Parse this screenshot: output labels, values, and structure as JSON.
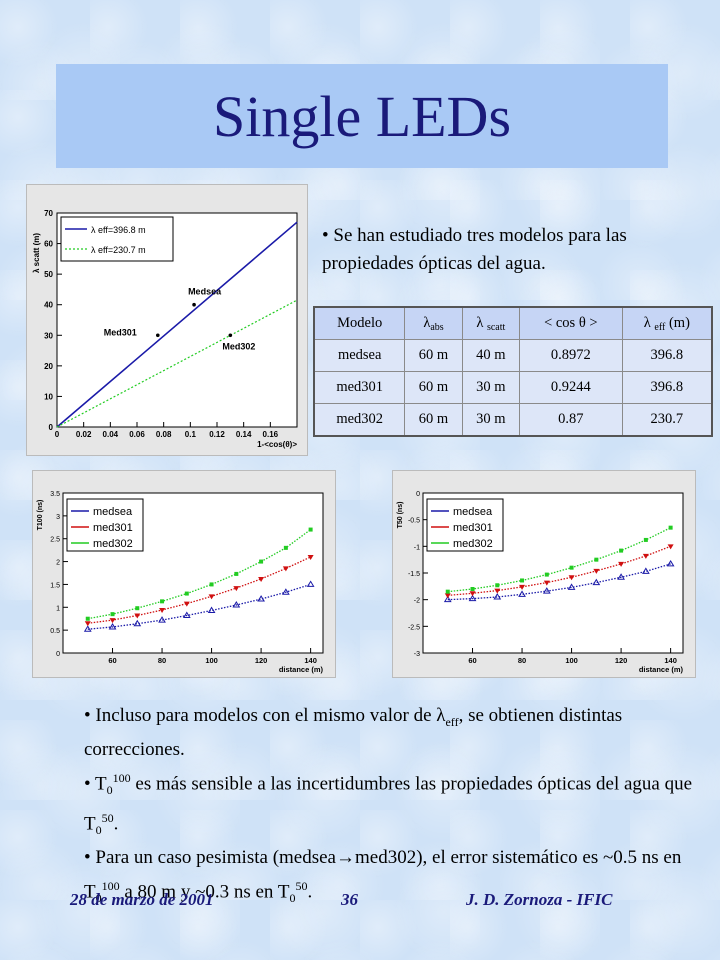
{
  "title": "Single LEDs",
  "top_bullet": "• Se han estudiado tres modelos para las propiedades ópticas del agua.",
  "table": {
    "headers": {
      "modelo": "Modelo",
      "abs_sym": "λ",
      "abs_sub": "abs",
      "scatt_sym": "λ",
      "scatt_sub": "scatt",
      "cos": "< cos θ >",
      "eff_sym": "λ",
      "eff_sub": "eff",
      "eff_unit": "(m)"
    },
    "rows": [
      {
        "modelo": "medsea",
        "abs": "60 m",
        "scatt": "40 m",
        "cos": "0.8972",
        "eff": "396.8"
      },
      {
        "modelo": "med301",
        "abs": "60 m",
        "scatt": "30 m",
        "cos": "0.9244",
        "eff": "396.8"
      },
      {
        "modelo": "med302",
        "abs": "60 m",
        "scatt": "30 m",
        "cos": "0.87",
        "eff": "230.7"
      }
    ]
  },
  "bottom": {
    "b1_pre": "• Incluso para modelos con el mismo valor de ",
    "b1_sym": "λ",
    "b1_sub": "eff",
    "b1_post": ", se obtienen distintas correcciones.",
    "b2_pre": "• T",
    "b2_sub": "0",
    "b2_sup": "100",
    "b2_mid": " es más sensible a las incertidumbres las propiedades ópticas del agua que T",
    "b2_sub2": "0",
    "b2_sup2": "50",
    "b2_end": ".",
    "b3_pre": "• Para un caso pesimista (medsea",
    "b3_arrow": "→",
    "b3_mid": "med302), el error sistemático es ~0.5 ns en T",
    "b3_sub": "0",
    "b3_sup": "100",
    "b3_mid2": " a 80 m y ~0.3 ns en T",
    "b3_sub2": "0",
    "b3_sup2": "50",
    "b3_end": "."
  },
  "footer": {
    "date": "28 de marzo de 2001",
    "page": "36",
    "author": "J. D. Zornoza - IFIC"
  },
  "colors": {
    "title_text": "#1a1a7a",
    "medsea": "#1a1aa8",
    "med301": "#d01010",
    "med302": "#22cc22"
  },
  "chart_data": [
    {
      "type": "line",
      "xlabel": "1-<cos(θ)>",
      "ylabel": "λ scatt (m)",
      "xlim": [
        0,
        0.18
      ],
      "ylim": [
        0,
        70
      ],
      "xticks": [
        "0",
        "0.02",
        "0.04",
        "0.06",
        "0.08",
        "0.1",
        "0.12",
        "0.14",
        "0.16"
      ],
      "yticks": [
        "0",
        "10",
        "20",
        "30",
        "40",
        "50",
        "60",
        "70"
      ],
      "legend": [
        "λ eff=396.8 m",
        "λ eff=230.7 m"
      ],
      "series": [
        {
          "name": "λ eff=396.8 m",
          "x": [
            0,
            0.18
          ],
          "y": [
            0,
            71.4
          ],
          "style": "solid",
          "color": "#1a1aa8"
        },
        {
          "name": "λ eff=230.7 m",
          "x": [
            0,
            0.18
          ],
          "y": [
            0,
            41.5
          ],
          "style": "dotted",
          "color": "#22cc22"
        }
      ],
      "points": [
        {
          "label": "Medsea",
          "x": 0.1028,
          "y": 40
        },
        {
          "label": "Med301",
          "x": 0.0756,
          "y": 30
        },
        {
          "label": "Med302",
          "x": 0.13,
          "y": 30
        }
      ]
    },
    {
      "type": "scatter",
      "xlabel": "distance (m)",
      "ylabel": "T100 (ns)",
      "xlim": [
        40,
        145
      ],
      "ylim": [
        0,
        3.5
      ],
      "xticks": [
        "60",
        "80",
        "100",
        "120",
        "140"
      ],
      "yticks": [
        "0",
        "0.5",
        "1",
        "1.5",
        "2",
        "2.5",
        "3",
        "3.5"
      ],
      "legend": [
        "medsea",
        "med301",
        "med302"
      ],
      "series": [
        {
          "name": "medsea",
          "x": [
            50,
            60,
            70,
            80,
            90,
            100,
            110,
            120,
            130,
            140
          ],
          "y": [
            0.52,
            0.57,
            0.64,
            0.72,
            0.82,
            0.93,
            1.05,
            1.18,
            1.33,
            1.5
          ]
        },
        {
          "name": "med301",
          "x": [
            50,
            60,
            70,
            80,
            90,
            100,
            110,
            120,
            130,
            140
          ],
          "y": [
            0.65,
            0.72,
            0.82,
            0.94,
            1.08,
            1.24,
            1.42,
            1.62,
            1.85,
            2.1
          ]
        },
        {
          "name": "med302",
          "x": [
            50,
            60,
            70,
            80,
            90,
            100,
            110,
            120,
            130,
            140
          ],
          "y": [
            0.75,
            0.85,
            0.98,
            1.13,
            1.3,
            1.5,
            1.73,
            2.0,
            2.3,
            2.7
          ]
        }
      ]
    },
    {
      "type": "scatter",
      "xlabel": "distance (m)",
      "ylabel": "T50 (ns)",
      "xlim": [
        40,
        145
      ],
      "ylim": [
        -3,
        0
      ],
      "xticks": [
        "60",
        "80",
        "100",
        "120",
        "140"
      ],
      "yticks": [
        "-3",
        "-2.5",
        "-2",
        "-1.5",
        "-1",
        "-0.5",
        "0"
      ],
      "legend": [
        "medsea",
        "med301",
        "med302"
      ],
      "series": [
        {
          "name": "medsea",
          "x": [
            50,
            60,
            70,
            80,
            90,
            100,
            110,
            120,
            130,
            140
          ],
          "y": [
            -2.0,
            -1.98,
            -1.95,
            -1.9,
            -1.84,
            -1.77,
            -1.68,
            -1.58,
            -1.47,
            -1.33
          ]
        },
        {
          "name": "med301",
          "x": [
            50,
            60,
            70,
            80,
            90,
            100,
            110,
            120,
            130,
            140
          ],
          "y": [
            -1.92,
            -1.88,
            -1.83,
            -1.76,
            -1.68,
            -1.58,
            -1.46,
            -1.33,
            -1.18,
            -1.0
          ]
        },
        {
          "name": "med302",
          "x": [
            50,
            60,
            70,
            80,
            90,
            100,
            110,
            120,
            130,
            140
          ],
          "y": [
            -1.85,
            -1.8,
            -1.73,
            -1.64,
            -1.53,
            -1.4,
            -1.25,
            -1.08,
            -0.88,
            -0.65
          ]
        }
      ]
    }
  ]
}
